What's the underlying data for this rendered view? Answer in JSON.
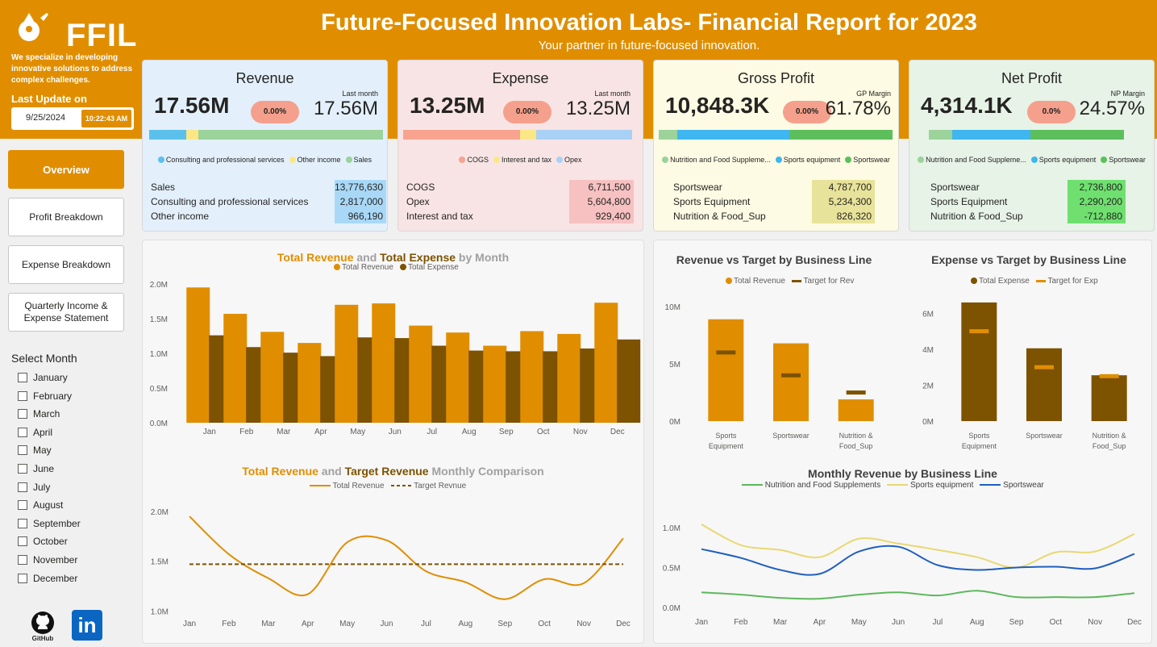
{
  "header": {
    "title": "Future-Focused Innovation Labs- Financial Report for 2023",
    "subtitle": "Your partner in future-focused innovation.",
    "logo": "FFIL",
    "tagline": "We specialize in developing innovative solutions to address complex challenges.",
    "last_update_label": "Last Update on",
    "date": "9/25/2024",
    "time": "10:22:43 AM"
  },
  "nav": {
    "overview": "Overview",
    "profit": "Profit Breakdown",
    "expense": "Expense Breakdown",
    "quarterly": "Quarterly Income & Expense Statement"
  },
  "months": {
    "label": "Select Month",
    "items": [
      "January",
      "February",
      "March",
      "April",
      "May",
      "June",
      "July",
      "August",
      "September",
      "October",
      "November",
      "December"
    ]
  },
  "social": {
    "github": "GitHub",
    "linkedin": "in"
  },
  "kpis": {
    "revenue": {
      "title": "Revenue",
      "value": "17.56M",
      "change": "0.00%",
      "side_label": "Last month",
      "side_value": "17.56M",
      "bar": [
        {
          "p": 0.16,
          "c": "#5bc0eb"
        },
        {
          "p": 0.05,
          "c": "#fbe786"
        },
        {
          "p": 0.79,
          "c": "#9bd39a"
        }
      ],
      "legend": [
        {
          "n": "Consulting and professional services",
          "c": "#5bc0eb"
        },
        {
          "n": "Other income",
          "c": "#fbe786"
        },
        {
          "n": "Sales",
          "c": "#9bd39a"
        }
      ],
      "rows": [
        {
          "n": "Sales",
          "v": "13,776,630"
        },
        {
          "n": "Consulting and professional services",
          "v": "2,817,000"
        },
        {
          "n": "Other income",
          "v": "966,190"
        }
      ],
      "tint": "#a9d8f7",
      "bg": "#e3f0fb"
    },
    "expense": {
      "title": "Expense",
      "value": "13.25M",
      "change": "0.00%",
      "side_label": "Last month",
      "side_value": "13.25M",
      "bar": [
        {
          "p": 0.51,
          "c": "#f8a38f"
        },
        {
          "p": 0.07,
          "c": "#fbe786"
        },
        {
          "p": 0.42,
          "c": "#a9d0f5"
        }
      ],
      "legend": [
        {
          "n": "COGS",
          "c": "#f8a38f"
        },
        {
          "n": "Interest and tax",
          "c": "#fbe786"
        },
        {
          "n": "Opex",
          "c": "#a9d0f5"
        }
      ],
      "rows": [
        {
          "n": "COGS",
          "v": "6,711,500"
        },
        {
          "n": "Opex",
          "v": "5,604,800"
        },
        {
          "n": "Interest and tax",
          "v": "929,400"
        }
      ],
      "tint": "#f7c1c1",
      "bg": "#f8e4e4"
    },
    "gross": {
      "title": "Gross Profit",
      "value": "10,848.3K",
      "change": "0.00%",
      "side_label": "GP Margin",
      "side_value": "61.78%",
      "bar": [
        {
          "p": 0.08,
          "c": "#9bd39a"
        },
        {
          "p": 0.48,
          "c": "#3fb6ef"
        },
        {
          "p": 0.44,
          "c": "#5cbf5c"
        }
      ],
      "legend": [
        {
          "n": "Nutrition and Food Suppleme...",
          "c": "#9bd39a"
        },
        {
          "n": "Sports equipment",
          "c": "#3fb6ef"
        },
        {
          "n": "Sportswear",
          "c": "#5cbf5c"
        }
      ],
      "rows": [
        {
          "n": "Sportswear",
          "v": "4,787,700"
        },
        {
          "n": "Sports Equipment",
          "v": "5,234,300"
        },
        {
          "n": "Nutrition & Food_Sup",
          "v": "826,320"
        }
      ],
      "tint": "#e8e39a",
      "bg": "#fdfbe3"
    },
    "net": {
      "title": "Net Profit",
      "value": "4,314.1K",
      "change": "0.0%",
      "side_label": "NP Margin",
      "side_value": "24.57%",
      "bar": [
        {
          "p": 0.12,
          "c": "#9bd39a"
        },
        {
          "p": 0.4,
          "c": "#3fb6ef"
        },
        {
          "p": 0.48,
          "c": "#5cbf5c"
        }
      ],
      "legend": [
        {
          "n": "Nutrition and Food Suppleme...",
          "c": "#9bd39a"
        },
        {
          "n": "Sports equipment",
          "c": "#3fb6ef"
        },
        {
          "n": "Sportswear",
          "c": "#5cbf5c"
        }
      ],
      "rows": [
        {
          "n": "Sportswear",
          "v": "2,736,800"
        },
        {
          "n": "Sports Equipment",
          "v": "2,290,200"
        },
        {
          "n": "Nutrition & Food_Sup",
          "v": "-712,880"
        }
      ],
      "tint": "#6fe06f",
      "bg": "#e6f3e6"
    }
  },
  "chart_titles": {
    "c1": [
      {
        "t": "Total Revenue",
        "c": "#e08e00"
      },
      {
        "t": " and ",
        "c": "#a0a0a0"
      },
      {
        "t": "Total Expense",
        "c": "#7d5200"
      },
      {
        "t": " by Month",
        "c": "#a0a0a0"
      }
    ],
    "c3": [
      {
        "t": "Total Revenue",
        "c": "#e08e00"
      },
      {
        "t": " and ",
        "c": "#a0a0a0"
      },
      {
        "t": "Target Revenue",
        "c": "#7d5200"
      },
      {
        "t": "  Monthly Comparison",
        "c": "#a0a0a0"
      }
    ],
    "c2a": "Revenue vs Target by Business Line",
    "c2b": "Expense vs Target by Business Line",
    "c4": "Monthly Revenue by Business Line"
  },
  "chart_data": [
    {
      "type": "bar",
      "title": "Total Revenue and Total Expense by Month",
      "categories": [
        "Jan",
        "Feb",
        "Mar",
        "Apr",
        "May",
        "Jun",
        "Jul",
        "Aug",
        "Sep",
        "Oct",
        "Nov",
        "Dec"
      ],
      "series": [
        {
          "name": "Total Revenue",
          "color": "#e08e00",
          "values": [
            1.95,
            1.57,
            1.31,
            1.15,
            1.7,
            1.72,
            1.4,
            1.3,
            1.11,
            1.32,
            1.28,
            1.73
          ]
        },
        {
          "name": "Total Expense",
          "color": "#7d5200",
          "values": [
            1.26,
            1.09,
            1.01,
            0.96,
            1.23,
            1.22,
            1.11,
            1.04,
            1.03,
            1.03,
            1.07,
            1.2
          ]
        }
      ],
      "ylim": [
        0,
        2
      ],
      "yticks": [
        "0.0M",
        "0.5M",
        "1.0M",
        "1.5M",
        "2.0M"
      ]
    },
    {
      "type": "bar",
      "title": "Revenue vs Target by Business Line",
      "categories": [
        "Sports Equipment",
        "Sportswear",
        "Nutrition & Food_Sup"
      ],
      "series": [
        {
          "name": "Total Revenue",
          "color": "#e08e00",
          "values": [
            8.9,
            6.8,
            1.9
          ]
        },
        {
          "name": "Target for Rev",
          "color": "#7d5200",
          "values": [
            6.0,
            4.0,
            2.5
          ]
        }
      ],
      "ylim": [
        0,
        11
      ],
      "yticks": [
        "0M",
        "5M",
        "10M"
      ]
    },
    {
      "type": "bar",
      "title": "Expense vs Target by Business Line",
      "categories": [
        "Sports Equipment",
        "Sportswear",
        "Nutrition & Food_Sup"
      ],
      "series": [
        {
          "name": "Total Expense",
          "color": "#7d5200",
          "values": [
            6.6,
            4.05,
            2.55
          ]
        },
        {
          "name": "Target for Exp",
          "color": "#e08e00",
          "values": [
            5.0,
            3.0,
            2.5
          ]
        }
      ],
      "ylim": [
        0,
        7
      ],
      "yticks": [
        "0M",
        "2M",
        "4M",
        "6M"
      ]
    },
    {
      "type": "line",
      "title": "Total Revenue and Target Revenue Monthly Comparison",
      "categories": [
        "Jan",
        "Feb",
        "Mar",
        "Apr",
        "May",
        "Jun",
        "Jul",
        "Aug",
        "Sep",
        "Oct",
        "Nov",
        "Dec"
      ],
      "series": [
        {
          "name": "Total Revenue",
          "color": "#e08e00",
          "values": [
            1.95,
            1.57,
            1.33,
            1.17,
            1.69,
            1.71,
            1.4,
            1.29,
            1.12,
            1.32,
            1.28,
            1.73
          ]
        },
        {
          "name": "Target Revnue",
          "color": "#7d5200",
          "values": [
            1.47,
            1.47,
            1.47,
            1.47,
            1.47,
            1.47,
            1.47,
            1.47,
            1.47,
            1.47,
            1.47,
            1.47
          ]
        }
      ],
      "ylim": [
        0.98,
        2.08
      ],
      "yticks": [
        "1.0M",
        "1.5M",
        "2.0M"
      ]
    },
    {
      "type": "line",
      "title": "Monthly Revenue by Business Line",
      "categories": [
        "Jan",
        "Feb",
        "Mar",
        "Apr",
        "May",
        "Jun",
        "Jul",
        "Aug",
        "Sep",
        "Oct",
        "Nov",
        "Dec"
      ],
      "series": [
        {
          "name": "Nutrition and Food Supplements",
          "color": "#5cb85c",
          "values": [
            0.19,
            0.16,
            0.12,
            0.11,
            0.16,
            0.19,
            0.15,
            0.21,
            0.13,
            0.13,
            0.13,
            0.18
          ]
        },
        {
          "name": "Sports equipment",
          "color": "#e8d872",
          "values": [
            1.04,
            0.78,
            0.72,
            0.63,
            0.86,
            0.8,
            0.72,
            0.63,
            0.5,
            0.69,
            0.7,
            0.92
          ]
        },
        {
          "name": "Sportswear",
          "color": "#1f5fbf",
          "values": [
            0.73,
            0.62,
            0.47,
            0.42,
            0.7,
            0.76,
            0.53,
            0.47,
            0.5,
            0.51,
            0.49,
            0.67
          ]
        }
      ],
      "ylim": [
        -0.05,
        1.12
      ],
      "yticks": [
        "0.0M",
        "0.5M",
        "1.0M"
      ]
    }
  ]
}
